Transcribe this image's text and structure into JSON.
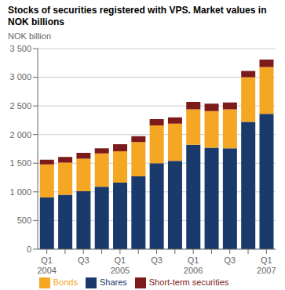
{
  "chart_data": {
    "type": "bar",
    "title": "Stocks of securities registered with VPS. Market values in\nNOK billions",
    "y_label": "NOK billion",
    "categories": [
      "Q1\n2004",
      null,
      "Q3",
      null,
      "Q1\n2005",
      null,
      "Q3",
      null,
      "Q1\n2006",
      null,
      "Q3",
      null,
      "Q1\n2007"
    ],
    "series": [
      {
        "name": "Shares",
        "color": "#1a3a6b",
        "values": [
          900,
          950,
          1010,
          1090,
          1160,
          1270,
          1500,
          1540,
          1820,
          1770,
          1760,
          2220,
          2360
        ]
      },
      {
        "name": "Bonds",
        "color": "#f5a623",
        "values": [
          580,
          560,
          570,
          580,
          550,
          600,
          660,
          650,
          620,
          640,
          680,
          780,
          820
        ]
      },
      {
        "name": "Short-term securities",
        "color": "#7d1a1a",
        "values": [
          80,
          100,
          100,
          90,
          120,
          100,
          110,
          110,
          130,
          130,
          120,
          110,
          130
        ]
      }
    ],
    "stacked": true,
    "ylim": [
      0,
      3500
    ],
    "yticks": [
      0,
      500,
      {
        "value": 1000,
        "label": "1 000"
      },
      {
        "value": 1500,
        "label": "1 500"
      },
      {
        "value": 2000,
        "label": "2 000"
      },
      {
        "value": 2500,
        "label": "2 500"
      },
      {
        "value": 3000,
        "label": "3 000"
      },
      {
        "value": 3500,
        "label": "3 500"
      }
    ],
    "grid": true,
    "legend": "bottom"
  }
}
